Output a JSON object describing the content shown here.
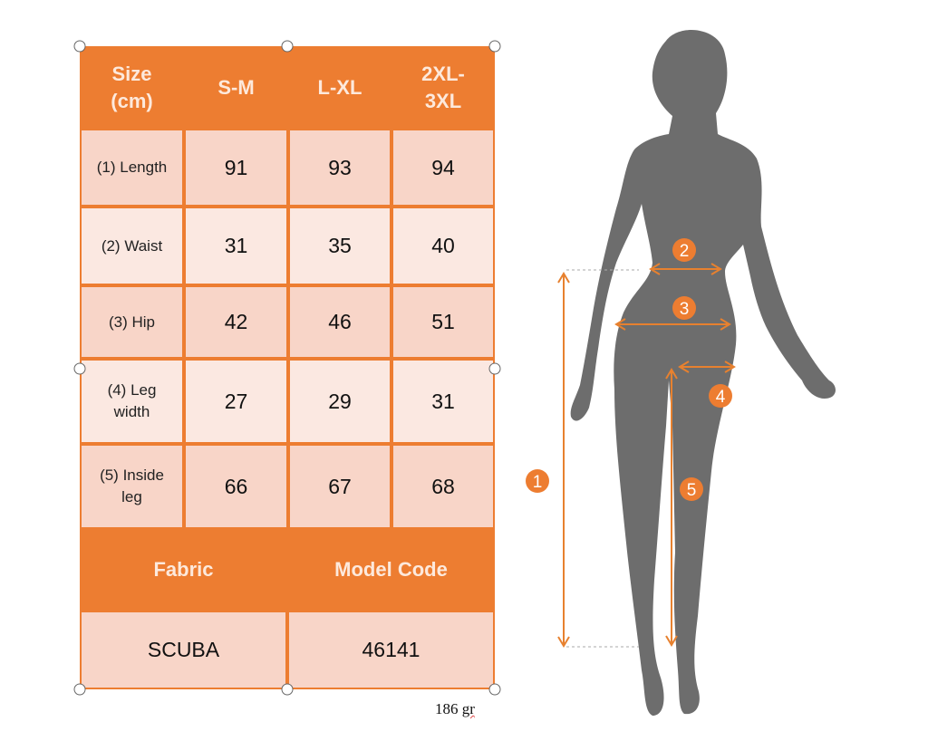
{
  "table": {
    "header": [
      "Size (cm)",
      "S-M",
      "L-XL",
      "2XL-3XL"
    ],
    "rows": [
      {
        "label": "(1) Length",
        "values": [
          "91",
          "93",
          "94"
        ]
      },
      {
        "label": "(2) Waist",
        "values": [
          "31",
          "35",
          "40"
        ]
      },
      {
        "label": "(3) Hip",
        "values": [
          "42",
          "46",
          "51"
        ]
      },
      {
        "label": "(4) Leg width",
        "values": [
          "27",
          "29",
          "31"
        ]
      },
      {
        "label": "(5) Inside leg",
        "values": [
          "66",
          "67",
          "68"
        ]
      }
    ],
    "footer_header": [
      "Fabric",
      "Model Code"
    ],
    "footer_values": [
      "SCUBA",
      "46141"
    ]
  },
  "weight": {
    "value": "186",
    "unit": "gr"
  },
  "figure": {
    "markers": [
      "1",
      "2",
      "3",
      "4",
      "5"
    ]
  },
  "colors": {
    "accent": "#ed7d31",
    "cell_dark": "#f8d5c8",
    "cell_light": "#fbe8e1",
    "silhouette": "#6d6d6d"
  }
}
